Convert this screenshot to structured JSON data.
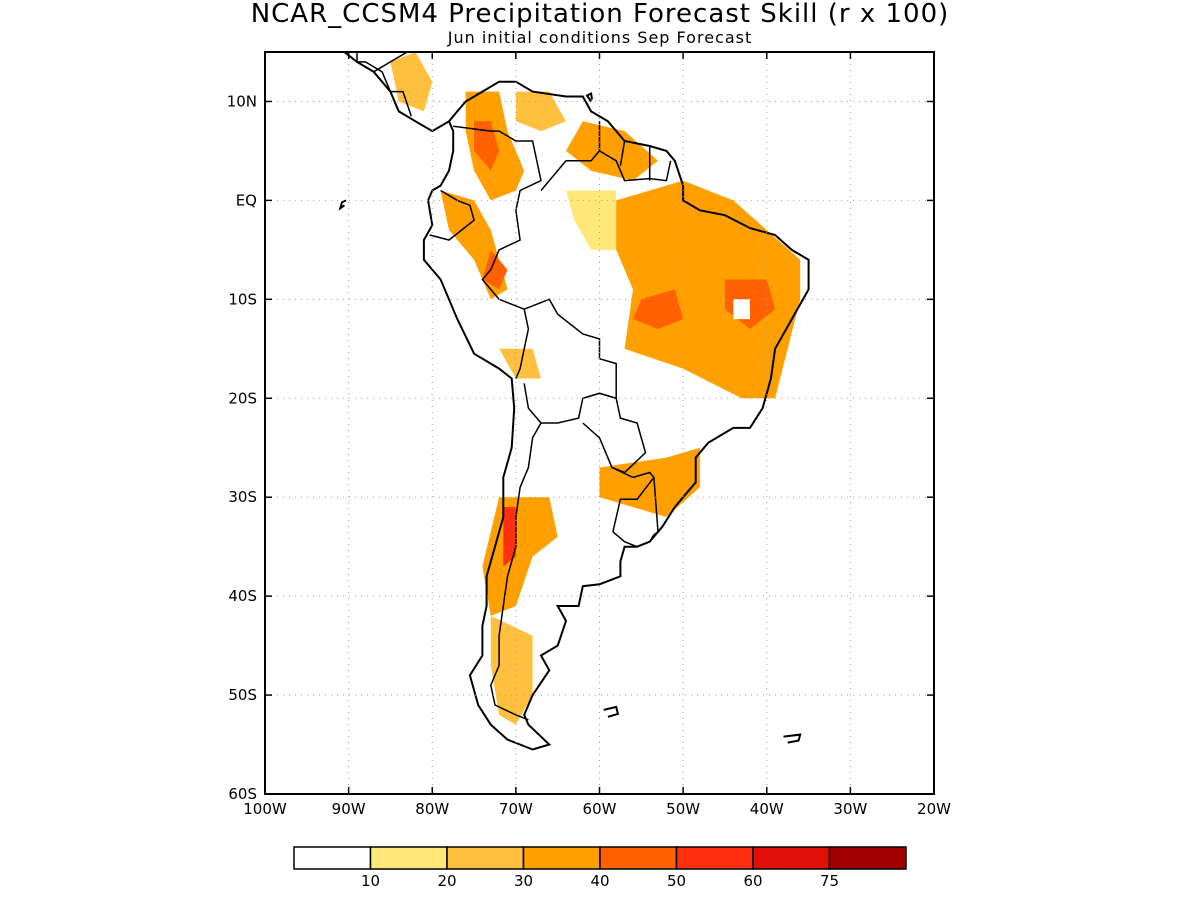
{
  "title": "NCAR_CCSM4 Precipitation Forecast Skill (r x 100)",
  "subtitle": "Jun initial conditions  Sep Forecast",
  "map": {
    "lon_range": [
      -100,
      -20
    ],
    "lat_range": [
      -60,
      15
    ],
    "lon_ticks": [
      {
        "value": -100,
        "label": "100W"
      },
      {
        "value": -90,
        "label": "90W"
      },
      {
        "value": -80,
        "label": "80W"
      },
      {
        "value": -70,
        "label": "70W"
      },
      {
        "value": -60,
        "label": "60W"
      },
      {
        "value": -50,
        "label": "50W"
      },
      {
        "value": -40,
        "label": "40W"
      },
      {
        "value": -30,
        "label": "30W"
      },
      {
        "value": -20,
        "label": "20W"
      }
    ],
    "lat_ticks": [
      {
        "value": 10,
        "label": "10N"
      },
      {
        "value": 0,
        "label": "EQ"
      },
      {
        "value": -10,
        "label": "10S"
      },
      {
        "value": -20,
        "label": "20S"
      },
      {
        "value": -30,
        "label": "30S"
      },
      {
        "value": -40,
        "label": "40S"
      },
      {
        "value": -50,
        "label": "50S"
      },
      {
        "value": -60,
        "label": "60S"
      }
    ],
    "grid": true,
    "skill_regions": [
      {
        "name": "Central America",
        "level": 20,
        "polygon": [
          [
            -85,
            14
          ],
          [
            -82,
            15
          ],
          [
            -80,
            12
          ],
          [
            -81,
            9
          ],
          [
            -84,
            10
          ]
        ]
      },
      {
        "name": "Colombia Andes",
        "level": 30,
        "polygon": [
          [
            -76,
            11
          ],
          [
            -72,
            11
          ],
          [
            -71,
            7
          ],
          [
            -69,
            3
          ],
          [
            -70,
            1
          ],
          [
            -73,
            0
          ],
          [
            -75,
            3
          ],
          [
            -76,
            7
          ]
        ]
      },
      {
        "name": "Colombia core",
        "level": 40,
        "polygon": [
          [
            -75,
            8
          ],
          [
            -73,
            8
          ],
          [
            -72,
            5
          ],
          [
            -73,
            3
          ],
          [
            -75,
            5
          ]
        ]
      },
      {
        "name": "Ecuador Peru",
        "level": 30,
        "polygon": [
          [
            -79,
            1
          ],
          [
            -75,
            0
          ],
          [
            -73,
            -3
          ],
          [
            -71,
            -9
          ],
          [
            -73,
            -10
          ],
          [
            -75,
            -6
          ],
          [
            -78,
            -3
          ]
        ]
      },
      {
        "name": "Peru core",
        "level": 40,
        "polygon": [
          [
            -73,
            -5
          ],
          [
            -71,
            -7
          ],
          [
            -72,
            -9
          ],
          [
            -74,
            -8
          ]
        ]
      },
      {
        "name": "Venezuela",
        "level": 20,
        "polygon": [
          [
            -70,
            11
          ],
          [
            -66,
            11
          ],
          [
            -64,
            8
          ],
          [
            -67,
            7
          ],
          [
            -70,
            8
          ]
        ]
      },
      {
        "name": "Guianas",
        "level": 30,
        "polygon": [
          [
            -62,
            8
          ],
          [
            -57,
            7
          ],
          [
            -53,
            4
          ],
          [
            -56,
            2
          ],
          [
            -61,
            3
          ],
          [
            -64,
            5
          ]
        ]
      },
      {
        "name": "Amazon strip",
        "level": 10,
        "polygon": [
          [
            -64,
            1
          ],
          [
            -58,
            1
          ],
          [
            -58,
            -5
          ],
          [
            -61,
            -5
          ],
          [
            -63,
            -2
          ]
        ]
      },
      {
        "name": "NE Brazil",
        "level": 30,
        "polygon": [
          [
            -58,
            0
          ],
          [
            -50,
            2
          ],
          [
            -44,
            0
          ],
          [
            -36,
            -6
          ],
          [
            -36,
            -10
          ],
          [
            -39,
            -20
          ],
          [
            -43,
            -20
          ],
          [
            -50,
            -17
          ],
          [
            -57,
            -15
          ],
          [
            -56,
            -9
          ],
          [
            -58,
            -5
          ]
        ]
      },
      {
        "name": "NE Brazil core",
        "level": 40,
        "polygon": [
          [
            -55,
            -10
          ],
          [
            -51,
            -9
          ],
          [
            -50,
            -12
          ],
          [
            -53,
            -13
          ],
          [
            -56,
            -12
          ]
        ]
      },
      {
        "name": "Brazil east core",
        "level": 40,
        "polygon": [
          [
            -45,
            -8
          ],
          [
            -40,
            -8
          ],
          [
            -39,
            -11
          ],
          [
            -42,
            -13
          ],
          [
            -45,
            -11
          ]
        ]
      },
      {
        "name": "Bolivia",
        "level": 20,
        "polygon": [
          [
            -72,
            -15
          ],
          [
            -68,
            -15
          ],
          [
            -67,
            -18
          ],
          [
            -70,
            -18
          ]
        ]
      },
      {
        "name": "South Brazil",
        "level": 30,
        "polygon": [
          [
            -60,
            -27
          ],
          [
            -52,
            -26
          ],
          [
            -48,
            -25
          ],
          [
            -48,
            -29
          ],
          [
            -52,
            -32
          ],
          [
            -56,
            -31
          ],
          [
            -60,
            -30
          ]
        ]
      },
      {
        "name": "Central Chile Argentina",
        "level": 30,
        "polygon": [
          [
            -72,
            -30
          ],
          [
            -66,
            -30
          ],
          [
            -65,
            -34
          ],
          [
            -68,
            -36
          ],
          [
            -70,
            -41
          ],
          [
            -73,
            -42
          ],
          [
            -74,
            -37
          ]
        ]
      },
      {
        "name": "Central Chile core",
        "level": 50,
        "polygon": [
          [
            -71.5,
            -31
          ],
          [
            -70,
            -31
          ],
          [
            -70,
            -36
          ],
          [
            -71.5,
            -37
          ]
        ]
      },
      {
        "name": "Patagonia",
        "level": 20,
        "polygon": [
          [
            -73,
            -42
          ],
          [
            -68,
            -44
          ],
          [
            -68,
            -50
          ],
          [
            -70,
            -53
          ],
          [
            -72,
            -52
          ],
          [
            -73,
            -47
          ]
        ]
      }
    ],
    "blank_cells": [
      {
        "polygon": [
          [
            -44,
            -10
          ],
          [
            -42,
            -10
          ],
          [
            -42,
            -12
          ],
          [
            -44,
            -12
          ]
        ]
      }
    ]
  },
  "colorbar": {
    "colors": [
      "#ffffff",
      "#ffe878",
      "#ffc040",
      "#ffa000",
      "#ff6000",
      "#ff3010",
      "#e01008",
      "#a00000"
    ],
    "labels": [
      "10",
      "20",
      "30",
      "40",
      "50",
      "60",
      "75"
    ]
  }
}
